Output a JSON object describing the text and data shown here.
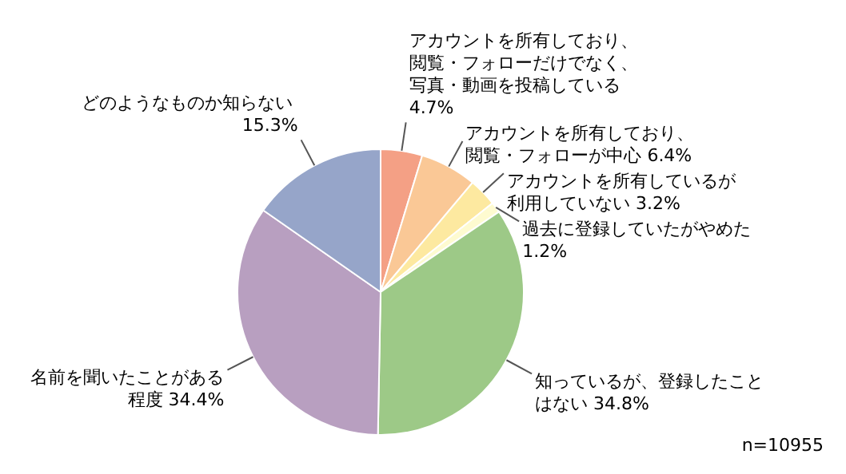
{
  "chart_data": {
    "type": "pie",
    "categories": [
      "アカウントを所有しており、閲覧・フォローだけでなく、写真・動画を投稿している",
      "アカウントを所有しており、閲覧・フォローが中心",
      "アカウントを所有しているが利用していない",
      "過去に登録していたがやめた",
      "知っているが、登録したことはない",
      "名前を聞いたことがある程度",
      "どのようなものか知らない"
    ],
    "values": [
      4.7,
      6.4,
      3.2,
      1.2,
      34.8,
      34.4,
      15.3
    ],
    "value_labels": [
      "4.7%",
      "6.4%",
      "3.2%",
      "1.2%",
      "34.8%",
      "34.4%",
      "15.3%"
    ],
    "colors": [
      "#f4a085",
      "#fac896",
      "#fde9a0",
      "#fefbd0",
      "#9dc987",
      "#b89fc0",
      "#96a5c9"
    ],
    "legend": false,
    "annotations": [
      "n=10955"
    ]
  }
}
